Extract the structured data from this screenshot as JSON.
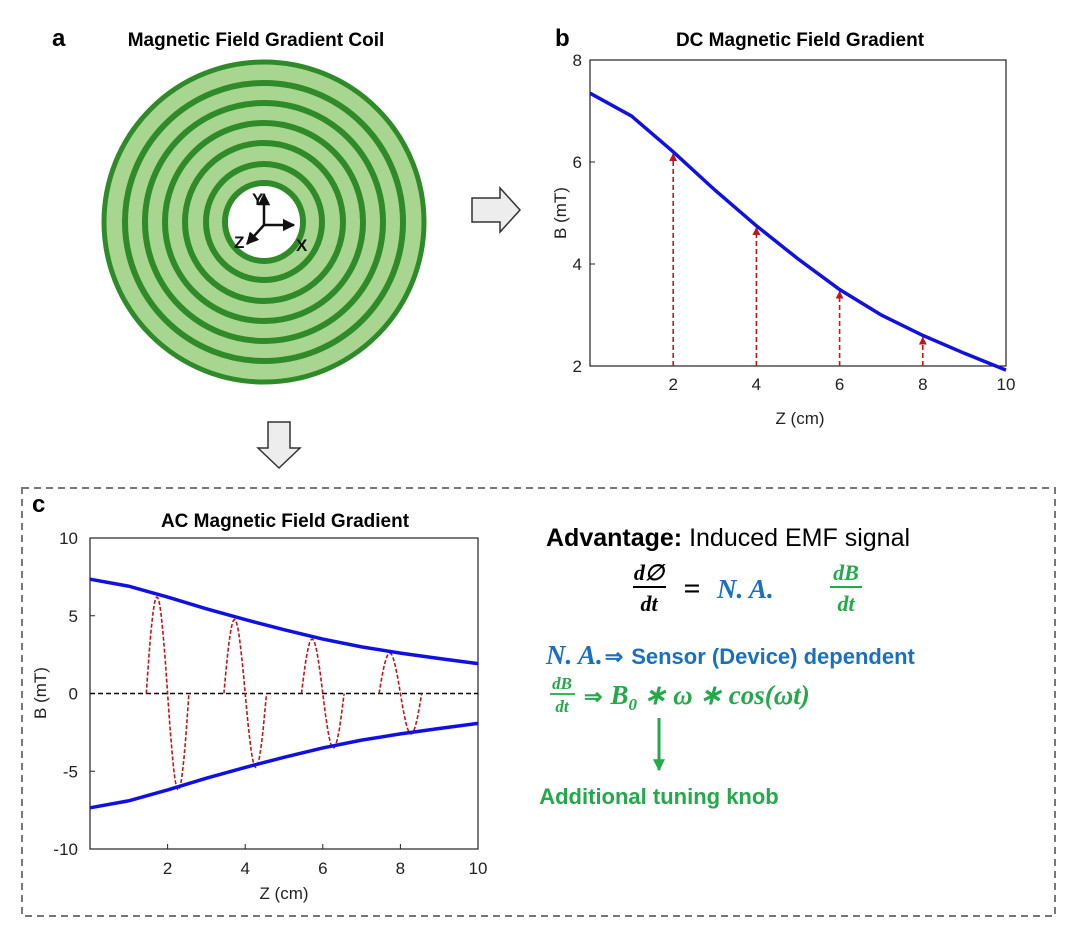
{
  "panels": {
    "a": {
      "letter": "a",
      "title": "Magnetic Field Gradient Coil",
      "axis_labels": {
        "y": "Y",
        "z": "Z",
        "x": "X"
      },
      "colors": {
        "ring_fill": "#a8d58f",
        "ring_stroke": "#2f8a2a"
      }
    },
    "b": {
      "letter": "b"
    },
    "c": {
      "letter": "c"
    }
  },
  "advantage": {
    "heading": "Advantage:",
    "text": " Induced EMF signal",
    "eq_lhs_num": "d∅",
    "eq_lhs_den": "dt",
    "eq_equals": "=",
    "eq_na": "N. A.",
    "eq_rhs_num": "dB",
    "eq_rhs_den": "dt",
    "line2_na": "N. A.",
    "line2_arrow": "⇒",
    "line2_text": "Sensor (Device) dependent",
    "line3_num": "dB",
    "line3_den": "dt",
    "line3_arrow": "⇒",
    "line3_expr": "B",
    "line3_sub": "0",
    "line3_rest": " ∗ ω ∗ cos(ωt)",
    "knob": "Additional tuning knob",
    "colors": {
      "blue": "#1a6fbf",
      "green": "#23a84a"
    }
  },
  "chart_data": [
    {
      "type": "line",
      "title": "DC Magnetic Field Gradient",
      "xlabel": "Z (cm)",
      "ylabel": "B (mT)",
      "xlim": [
        0,
        10
      ],
      "ylim": [
        2,
        8
      ],
      "xticks": [
        "2",
        "4",
        "6",
        "8",
        "10"
      ],
      "yticks": [
        "2",
        "4",
        "6",
        "8"
      ],
      "series": [
        {
          "color": "#1010e0",
          "x": [
            0,
            1,
            2,
            3,
            4,
            5,
            6,
            7,
            8,
            9,
            10
          ],
          "y": [
            7.35,
            6.9,
            6.2,
            5.45,
            4.75,
            4.1,
            3.5,
            3.0,
            2.6,
            2.25,
            1.92
          ]
        }
      ],
      "annotations": [
        {
          "kind": "arrow",
          "color": "#c0161a",
          "x": 2,
          "y": 6.2
        },
        {
          "kind": "arrow",
          "color": "#c0161a",
          "x": 4,
          "y": 4.75
        },
        {
          "kind": "arrow",
          "color": "#c0161a",
          "x": 6,
          "y": 3.5
        },
        {
          "kind": "arrow",
          "color": "#c0161a",
          "x": 8,
          "y": 2.6
        }
      ]
    },
    {
      "type": "line",
      "title": "AC Magnetic Field Gradient",
      "xlabel": "Z (cm)",
      "ylabel": "B (mT)",
      "xlim": [
        0,
        10
      ],
      "ylim": [
        -10,
        10
      ],
      "xticks": [
        "2",
        "4",
        "6",
        "8",
        "10"
      ],
      "yticks": [
        "10",
        "5",
        "0",
        "-5",
        "-10"
      ],
      "series": [
        {
          "color": "#1010e0",
          "x": [
            0,
            1,
            2,
            3,
            4,
            5,
            6,
            7,
            8,
            9,
            10
          ],
          "y": [
            7.35,
            6.9,
            6.2,
            5.45,
            4.75,
            4.1,
            3.5,
            3.0,
            2.6,
            2.25,
            1.92
          ]
        },
        {
          "color": "#1010e0",
          "x": [
            0,
            1,
            2,
            3,
            4,
            5,
            6,
            7,
            8,
            9,
            10
          ],
          "y": [
            -7.35,
            -6.9,
            -6.2,
            -5.45,
            -4.75,
            -4.1,
            -3.5,
            -3.0,
            -2.6,
            -2.25,
            -1.92
          ]
        }
      ],
      "zero_line": {
        "y": 0,
        "color": "#000000"
      },
      "oscillations": [
        {
          "center": 2,
          "amplitude": 6.2,
          "color": "#c0161a"
        },
        {
          "center": 4,
          "amplitude": 4.75,
          "color": "#c0161a"
        },
        {
          "center": 6,
          "amplitude": 3.5,
          "color": "#c0161a"
        },
        {
          "center": 8,
          "amplitude": 2.6,
          "color": "#c0161a"
        }
      ]
    }
  ]
}
